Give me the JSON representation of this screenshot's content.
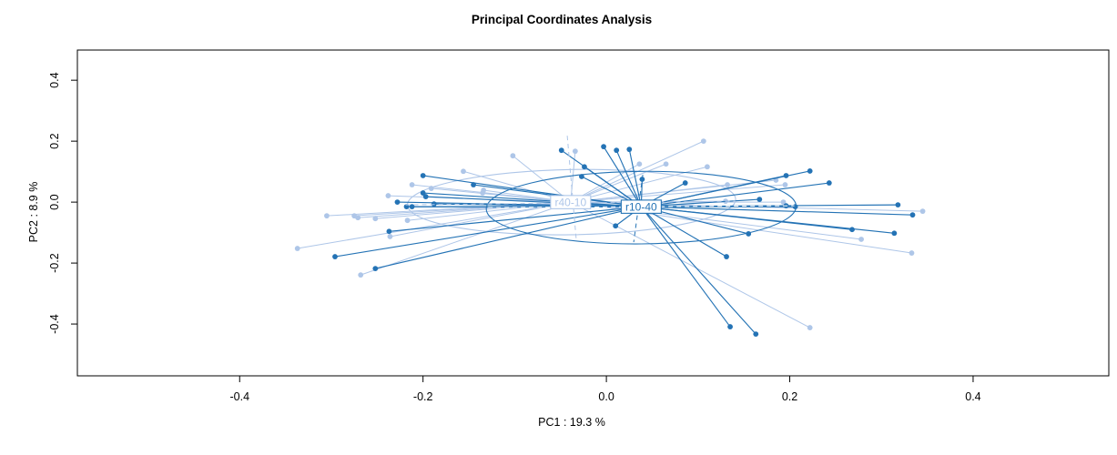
{
  "chart": {
    "title": "Principal Coordinates Analysis",
    "xlabel": "PC1 : 19.3 %",
    "ylabel": "PC2 : 8.9 %"
  },
  "chart_data": {
    "type": "scatter",
    "title": "Principal Coordinates Analysis",
    "xlabel": "PC1 : 19.3 %",
    "ylabel": "PC2 : 8.9 %",
    "xlim": [
      -0.577,
      0.548
    ],
    "ylim": [
      -0.57,
      0.499
    ],
    "xticks": [
      "-0.4",
      "-0.2",
      "0.0",
      "0.2",
      "0.4"
    ],
    "yticks": [
      "-0.4",
      "-0.2",
      "0.0",
      "0.2",
      "0.4"
    ],
    "grid": false,
    "legend": "none",
    "groups": [
      {
        "name": "r40-10",
        "color": "#aec6e8",
        "centroid": [
          -0.039,
          0.0
        ],
        "ellipse": {
          "cx": -0.038,
          "cy": 0.0,
          "rx": 0.179,
          "ry": 0.107,
          "angle": -1
        },
        "guide_h": [
          [
            -0.219,
            -0.009
          ],
          [
            0.141,
            0.003
          ]
        ],
        "guide_v": [
          [
            -0.0427,
            0.2179
          ],
          [
            -0.0328,
            -0.1254
          ]
        ],
        "guide_h_color": "#aec6e8",
        "points": [
          [
            -0.102,
            0.152
          ],
          [
            -0.156,
            0.101
          ],
          [
            -0.212,
            0.057
          ],
          [
            -0.191,
            0.045
          ],
          [
            -0.135,
            0.03
          ],
          [
            -0.134,
            0.039
          ],
          [
            -0.238,
            0.021
          ],
          [
            -0.305,
            -0.045
          ],
          [
            -0.275,
            -0.045
          ],
          [
            -0.271,
            -0.051
          ],
          [
            -0.252,
            -0.054
          ],
          [
            -0.217,
            -0.06
          ],
          [
            -0.236,
            -0.113
          ],
          [
            -0.337,
            -0.152
          ],
          [
            -0.268,
            -0.239
          ],
          [
            -0.034,
            0.167
          ],
          [
            0.106,
            0.2
          ],
          [
            0.065,
            0.125
          ],
          [
            0.11,
            0.116
          ],
          [
            0.132,
            0.057
          ],
          [
            0.13,
            0.003
          ],
          [
            0.185,
            0.072
          ],
          [
            0.195,
            0.057
          ],
          [
            0.193,
            0.0
          ],
          [
            0.345,
            -0.03
          ],
          [
            0.278,
            -0.122
          ],
          [
            0.333,
            -0.167
          ],
          [
            0.222,
            -0.412
          ],
          [
            0.036,
            0.125
          ]
        ]
      },
      {
        "name": "r10-40",
        "color": "#2473b5",
        "centroid": [
          0.038,
          -0.015
        ],
        "ellipse": {
          "cx": 0.038,
          "cy": -0.018,
          "rx": 0.169,
          "ry": 0.119,
          "angle": -0.5
        },
        "guide_h": [
          [
            -0.129,
            -0.018
          ],
          [
            0.205,
            -0.012
          ]
        ],
        "guide_v": [
          [
            0.0397,
            0.0896
          ],
          [
            0.0298,
            -0.1313
          ]
        ],
        "guide_h_color": "#ffffff",
        "points": [
          [
            -0.2,
            0.087
          ],
          [
            -0.145,
            0.057
          ],
          [
            -0.2,
            0.03
          ],
          [
            -0.228,
            0.0
          ],
          [
            -0.197,
            0.018
          ],
          [
            -0.188,
            -0.006
          ],
          [
            -0.218,
            -0.015
          ],
          [
            -0.212,
            -0.015
          ],
          [
            -0.237,
            -0.096
          ],
          [
            -0.296,
            -0.179
          ],
          [
            -0.252,
            -0.218
          ],
          [
            -0.049,
            0.17
          ],
          [
            -0.003,
            0.182
          ],
          [
            0.011,
            0.17
          ],
          [
            0.025,
            0.173
          ],
          [
            -0.024,
            0.116
          ],
          [
            -0.027,
            0.084
          ],
          [
            0.039,
            0.075
          ],
          [
            0.086,
            0.063
          ],
          [
            0.01,
            -0.078
          ],
          [
            0.222,
            0.102
          ],
          [
            0.196,
            0.087
          ],
          [
            0.243,
            0.063
          ],
          [
            0.167,
            0.009
          ],
          [
            0.196,
            -0.012
          ],
          [
            0.206,
            -0.015
          ],
          [
            0.318,
            -0.009
          ],
          [
            0.334,
            -0.042
          ],
          [
            0.268,
            -0.09
          ],
          [
            0.314,
            -0.102
          ],
          [
            0.155,
            -0.104
          ],
          [
            0.131,
            -0.179
          ],
          [
            0.135,
            -0.409
          ],
          [
            0.163,
            -0.433
          ]
        ]
      }
    ]
  }
}
